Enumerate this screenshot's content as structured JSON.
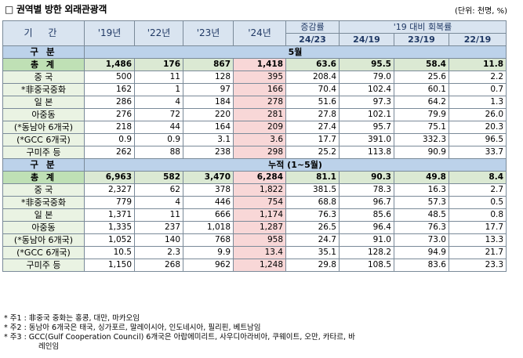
{
  "title": "□ 권역별 방한 외래관광객",
  "unit": "(단위: 천명, %)",
  "headers": {
    "period": "기 간",
    "y19": "'19년",
    "y22": "'22년",
    "y23": "'23년",
    "y24": "'24년",
    "change": "증감률",
    "change_sub": "24/23",
    "recovery": "'19 대비 회복률",
    "rec_2419": "24/19",
    "rec_2319": "23/19",
    "rec_2219": "22/19"
  },
  "sections": [
    {
      "label": "구 분",
      "bar": "5월",
      "rows": [
        {
          "name": "총 계",
          "v": [
            "1,486",
            "176",
            "867",
            "1,418",
            "63.6",
            "95.5",
            "58.4",
            "11.8"
          ],
          "total": true
        },
        {
          "name": "중 국",
          "v": [
            "500",
            "11",
            "128",
            "395",
            "208.4",
            "79.0",
            "25.6",
            "2.2"
          ]
        },
        {
          "name": "*非중국중화",
          "v": [
            "162",
            "1",
            "97",
            "166",
            "70.4",
            "102.4",
            "60.1",
            "0.7"
          ]
        },
        {
          "name": "일 본",
          "v": [
            "286",
            "4",
            "184",
            "278",
            "51.6",
            "97.3",
            "64.2",
            "1.3"
          ]
        },
        {
          "name": "아중동",
          "v": [
            "276",
            "72",
            "220",
            "281",
            "27.8",
            "102.1",
            "79.9",
            "26.0"
          ]
        },
        {
          "name": "(*동남아 6개국)",
          "v": [
            "218",
            "44",
            "164",
            "209",
            "27.4",
            "95.7",
            "75.1",
            "20.3"
          ]
        },
        {
          "name": "(*GCC 6개국)",
          "v": [
            "0.9",
            "0.9",
            "3.1",
            "3.6",
            "17.7",
            "391.0",
            "332.3",
            "96.5"
          ]
        },
        {
          "name": "구미주 등",
          "v": [
            "262",
            "88",
            "238",
            "298",
            "25.2",
            "113.8",
            "90.9",
            "33.7"
          ]
        }
      ]
    },
    {
      "label": "구 분",
      "bar": "누적 (1~5월)",
      "rows": [
        {
          "name": "총 계",
          "v": [
            "6,963",
            "582",
            "3,470",
            "6,284",
            "81.1",
            "90.3",
            "49.8",
            "8.4"
          ],
          "total": true
        },
        {
          "name": "중 국",
          "v": [
            "2,327",
            "62",
            "378",
            "1,822",
            "381.5",
            "78.3",
            "16.3",
            "2.7"
          ]
        },
        {
          "name": "*非중국중화",
          "v": [
            "779",
            "4",
            "446",
            "754",
            "68.8",
            "96.7",
            "57.3",
            "0.5"
          ]
        },
        {
          "name": "일 본",
          "v": [
            "1,371",
            "11",
            "666",
            "1,174",
            "76.3",
            "85.6",
            "48.5",
            "0.8"
          ]
        },
        {
          "name": "아중동",
          "v": [
            "1,335",
            "237",
            "1,018",
            "1,287",
            "26.5",
            "96.4",
            "76.3",
            "17.7"
          ]
        },
        {
          "name": "(*동남아 6개국)",
          "v": [
            "1,052",
            "140",
            "768",
            "958",
            "24.7",
            "91.0",
            "73.0",
            "13.3"
          ]
        },
        {
          "name": "(*GCC 6개국)",
          "v": [
            "10.5",
            "2.3",
            "9.9",
            "13.4",
            "35.1",
            "128.2",
            "94.9",
            "21.7"
          ]
        },
        {
          "name": "구미주 등",
          "v": [
            "1,150",
            "268",
            "962",
            "1,248",
            "29.8",
            "108.5",
            "83.6",
            "23.3"
          ]
        }
      ]
    }
  ],
  "notes": [
    "* 주1 : 非중국 중화는 홍콩, 대만, 마카오임",
    "* 주2 : 동남아 6개국은 태국, 싱가포르, 말레이시아, 인도네시아, 필리핀, 베트남임",
    "* 주3 : GCC(Gulf Cooperation Council) 6개국은 아랍에미리트, 사우디아라비아, 쿠웨이트, 오만, 카타르, 바",
    "레인임"
  ]
}
